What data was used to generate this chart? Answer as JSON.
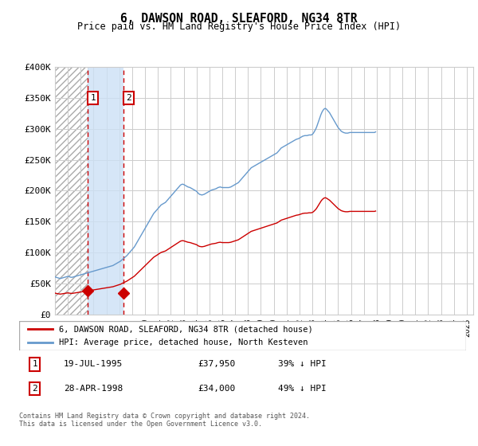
{
  "title": "6, DAWSON ROAD, SLEAFORD, NG34 8TR",
  "subtitle": "Price paid vs. HM Land Registry's House Price Index (HPI)",
  "legend_line1": "6, DAWSON ROAD, SLEAFORD, NG34 8TR (detached house)",
  "legend_line2": "HPI: Average price, detached house, North Kesteven",
  "sale1_date": "19-JUL-1995",
  "sale1_price": 37950,
  "sale1_year": 1995.54,
  "sale2_date": "28-APR-1998",
  "sale2_price": 34000,
  "sale2_year": 1998.32,
  "footnote": "Contains HM Land Registry data © Crown copyright and database right 2024.\nThis data is licensed under the Open Government Licence v3.0.",
  "ylim": [
    0,
    400000
  ],
  "ytick_vals": [
    0,
    50000,
    100000,
    150000,
    200000,
    250000,
    300000,
    350000,
    400000
  ],
  "ytick_labels": [
    "£0",
    "£50K",
    "£100K",
    "£150K",
    "£200K",
    "£250K",
    "£300K",
    "£350K",
    "£400K"
  ],
  "xlim_start": 1993.0,
  "xlim_end": 2025.5,
  "background_color": "#ffffff",
  "hpi_color": "#6699cc",
  "property_color": "#cc0000",
  "hpi_start_year": 1993,
  "hpi_monthly_values": [
    61000,
    60000,
    59500,
    59000,
    58500,
    58000,
    58500,
    59000,
    59500,
    60000,
    60500,
    61000,
    61500,
    61000,
    60500,
    60000,
    60000,
    60500,
    61000,
    61500,
    62000,
    62500,
    63000,
    63500,
    64000,
    64500,
    65000,
    65500,
    66000,
    66500,
    67000,
    67500,
    68000,
    68500,
    69000,
    69500,
    70000,
    70500,
    71000,
    71500,
    72000,
    72500,
    73000,
    73500,
    74000,
    74500,
    75000,
    75500,
    76000,
    76500,
    77000,
    77500,
    78000,
    78500,
    79000,
    80000,
    81000,
    82000,
    83000,
    84000,
    85000,
    86000,
    87500,
    89000,
    90500,
    92000,
    93500,
    95000,
    97000,
    99000,
    101000,
    103000,
    105000,
    107000,
    109000,
    112000,
    115000,
    118000,
    121000,
    124000,
    127000,
    130000,
    133000,
    136000,
    139000,
    142000,
    145000,
    148000,
    151000,
    154000,
    157000,
    160000,
    163000,
    165000,
    167000,
    169000,
    171000,
    173000,
    175000,
    177000,
    178000,
    179000,
    180000,
    181000,
    183000,
    185000,
    187000,
    189000,
    191000,
    193000,
    195000,
    197000,
    199000,
    201000,
    203000,
    205000,
    207000,
    209000,
    210000,
    210500,
    210000,
    209000,
    208000,
    207000,
    206000,
    205500,
    205000,
    204000,
    203000,
    202000,
    201000,
    200000,
    199000,
    197000,
    195000,
    194000,
    193500,
    193000,
    193500,
    194000,
    195000,
    196000,
    197000,
    198000,
    199000,
    200000,
    201000,
    201500,
    202000,
    202500,
    203000,
    204000,
    205000,
    205500,
    206000,
    205500,
    205000,
    205000,
    205000,
    205000,
    205000,
    205000,
    205000,
    205500,
    206000,
    207000,
    208000,
    209000,
    210000,
    211000,
    212000,
    213000,
    215000,
    217000,
    219000,
    221000,
    223000,
    225000,
    227000,
    229000,
    231000,
    233000,
    235000,
    237000,
    238000,
    239000,
    240000,
    241000,
    242000,
    243000,
    244000,
    245000,
    246000,
    247000,
    248000,
    249000,
    250000,
    251000,
    252000,
    253000,
    254000,
    255000,
    256000,
    257000,
    258000,
    259000,
    260000,
    261000,
    263000,
    265000,
    267000,
    269000,
    270000,
    271000,
    272000,
    273000,
    274000,
    275000,
    276000,
    277000,
    278000,
    279000,
    280000,
    281000,
    282000,
    283000,
    283500,
    284000,
    285000,
    286000,
    287000,
    288000,
    288500,
    289000,
    289000,
    289000,
    289500,
    290000,
    290000,
    290000,
    291000,
    293000,
    296000,
    299000,
    303000,
    308000,
    313000,
    318000,
    323000,
    327000,
    330000,
    332000,
    333000,
    332000,
    330000,
    328000,
    326000,
    323000,
    320000,
    317000,
    314000,
    311000,
    308000,
    305000,
    302000,
    300000,
    298000,
    296000,
    295000,
    294000,
    293500,
    293000,
    293000,
    293000,
    293500,
    294000,
    294000,
    294000,
    294000,
    294000,
    294000,
    294000,
    294000,
    294000,
    294000,
    294000,
    294000,
    294000,
    294000,
    294000,
    294000,
    294000,
    294000,
    294000,
    294000,
    294000,
    294000,
    294000,
    294000,
    295000
  ],
  "prop_hpi_ratio": 0.6175
}
